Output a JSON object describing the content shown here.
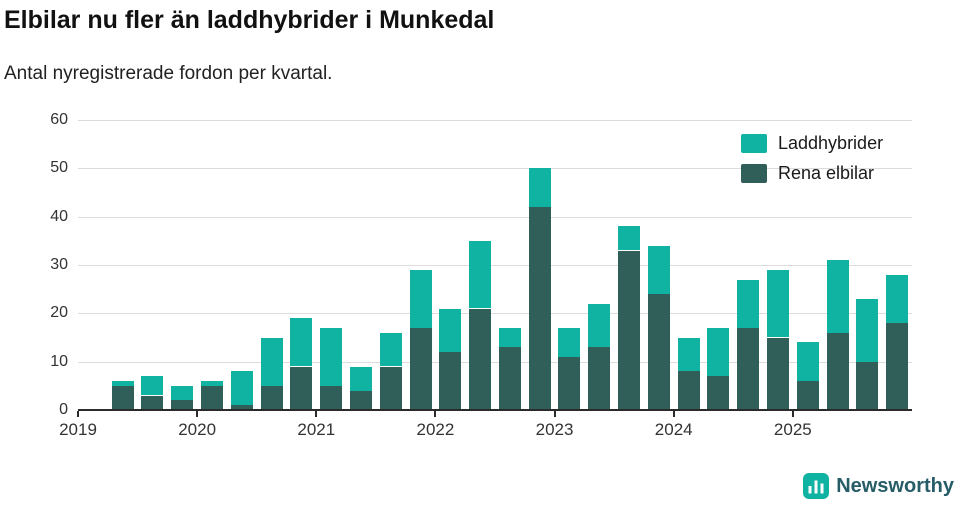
{
  "header": {
    "title": "Elbilar nu fler än laddhybrider i Munkedal",
    "subtitle": "Antal nyregistrerade fordon per kvartal."
  },
  "legend": {
    "items": [
      {
        "label": "Laddhybrider",
        "color": "#10b2a1"
      },
      {
        "label": "Rena elbilar",
        "color": "#2f5f58"
      }
    ]
  },
  "footer": {
    "brand": "Newsworthy",
    "icon_color": "#10b2a1"
  },
  "chart_data": {
    "type": "bar",
    "stacked": true,
    "title": "Elbilar nu fler än laddhybrider i Munkedal",
    "subtitle": "Antal nyregistrerade fordon per kvartal.",
    "x": [
      "2019 Q2",
      "2019 Q3",
      "2019 Q4",
      "2020 Q1",
      "2020 Q2",
      "2020 Q3",
      "2020 Q4",
      "2021 Q1",
      "2021 Q2",
      "2021 Q3",
      "2021 Q4",
      "2022 Q1",
      "2022 Q2",
      "2022 Q3",
      "2022 Q4",
      "2023 Q1",
      "2023 Q2",
      "2023 Q3",
      "2023 Q4",
      "2024 Q1",
      "2024 Q2",
      "2024 Q3",
      "2024 Q4",
      "2025 Q1",
      "2025 Q2",
      "2025 Q3",
      "2025 Q4"
    ],
    "series": [
      {
        "name": "Rena elbilar",
        "color": "#2f5f58",
        "values": [
          5,
          3,
          2,
          5,
          1,
          5,
          9,
          5,
          4,
          9,
          17,
          12,
          21,
          13,
          42,
          11,
          13,
          33,
          24,
          8,
          7,
          17,
          15,
          6,
          16,
          10,
          18
        ]
      },
      {
        "name": "Laddhybrider",
        "color": "#10b2a1",
        "values": [
          1,
          4,
          3,
          1,
          7,
          10,
          10,
          12,
          5,
          7,
          12,
          9,
          14,
          4,
          8,
          6,
          9,
          5,
          10,
          7,
          10,
          10,
          14,
          8,
          15,
          13,
          10
        ]
      }
    ],
    "totals": [
      6,
      7,
      5,
      6,
      8,
      15,
      19,
      17,
      9,
      16,
      29,
      21,
      35,
      17,
      50,
      17,
      22,
      38,
      34,
      15,
      17,
      27,
      29,
      14,
      31,
      23,
      28
    ],
    "ylim": [
      0,
      60
    ],
    "yticks": [
      0,
      10,
      20,
      30,
      40,
      50,
      60
    ],
    "xticks": [
      "2019",
      "2020",
      "2021",
      "2022",
      "2023",
      "2024",
      "2025"
    ],
    "legend_position": "top-right",
    "grid": true
  }
}
